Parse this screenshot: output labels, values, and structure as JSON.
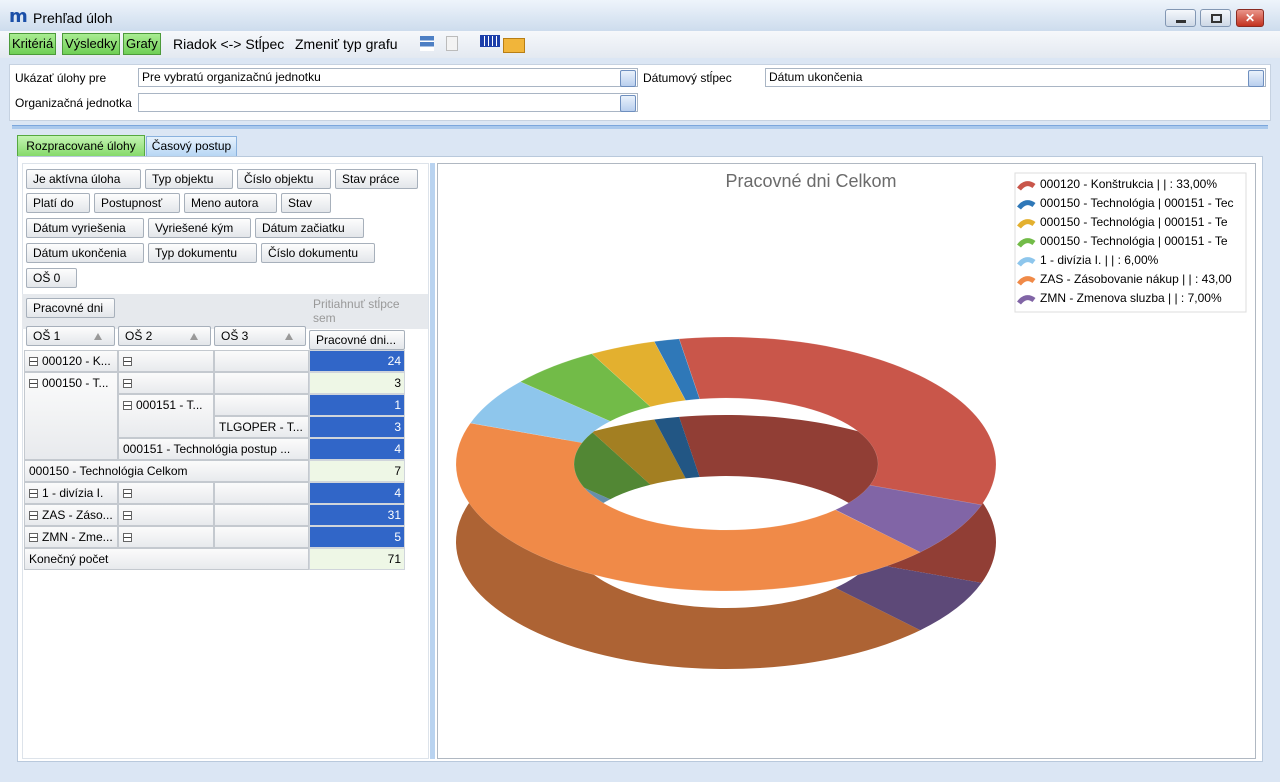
{
  "window": {
    "title": "Prehľad úloh"
  },
  "toolbar": {
    "buttons": [
      "Kritériá",
      "Výsledky",
      "Grafy"
    ],
    "actions": [
      "Riadok <-> Stĺpec",
      "Zmeniť typ grafu"
    ]
  },
  "filters": {
    "show_for_label": "Ukázať úlohy pre",
    "show_for_value": "Pre vybratú organizačnú jednotku",
    "date_column_label": "Dátumový stĺpec",
    "date_column_value": "Dátum ukončenia",
    "org_unit_label": "Organizačná jednotka"
  },
  "tabs": [
    "Rozpracované úlohy",
    "Časový postup"
  ],
  "fields": [
    "Je aktívna úloha",
    "Typ objektu",
    "Číslo objektu",
    "Stav práce",
    "Platí do",
    "Postupnosť",
    "Meno autora",
    "Stav",
    "Dátum vyriešenia",
    "Vyriešené kým",
    "Dátum začiatku",
    "Dátum ukončenia",
    "Typ dokumentu",
    "Číslo dokumentu",
    "OŠ 0"
  ],
  "pivot": {
    "data_field": "Pracovné dni",
    "column_drop_hint": "Pritiahnuť stĺpce sem",
    "row_headers": [
      "OŠ 1",
      "OŠ 2",
      "OŠ 3"
    ],
    "value_header": "Pracovné dni...",
    "rows": [
      {
        "label": "000120 - K...",
        "value": 24
      },
      {
        "label": "000150 - T...",
        "value": 3
      },
      {
        "label": "000151 - T...",
        "value": 1
      },
      {
        "label": "TLGOPER - T...",
        "value": 3
      },
      {
        "label": "000151 - Technológia postup ...",
        "value": 4
      },
      {
        "label": "000150 - Technológia Celkom",
        "value": 7
      },
      {
        "label": "1 - divízia I.",
        "value": 4
      },
      {
        "label": "ZAS - Záso...",
        "value": 31
      },
      {
        "label": "ZMN - Zme...",
        "value": 5
      },
      {
        "label": "Konečný počet",
        "value": 71
      }
    ]
  },
  "chart_data": {
    "type": "pie",
    "title": "Pracovné dni Celkom",
    "donut": true,
    "categories": [
      "000120 - Konštrukcia |  | : 33,00%",
      "000150 - Technológia | 000151 - Tec",
      "000150 - Technológia | 000151 - Te",
      "000150 - Technológia | 000151 - Te",
      "1 - divízia I. |  | : 6,00%",
      "ZAS - Zásobovanie nákup |  | : 43,00",
      "ZMN - Zmenova sluzba |  | : 7,00%"
    ],
    "values": [
      33,
      1.5,
      4,
      5.5,
      6,
      43,
      7
    ],
    "colors": [
      "#c9564a",
      "#2f78b8",
      "#e3b02f",
      "#72bb48",
      "#8ec6ec",
      "#f08a48",
      "#8165a6"
    ],
    "legend": "top-right"
  }
}
